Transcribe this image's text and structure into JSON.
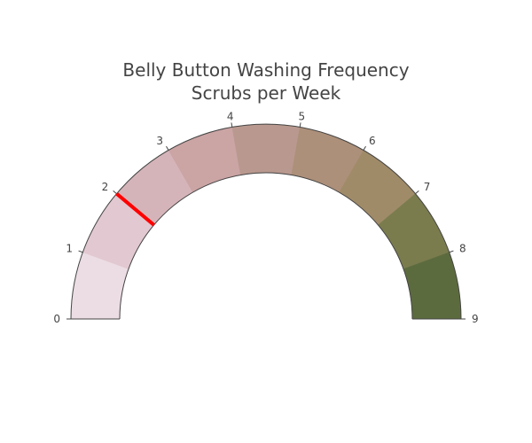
{
  "chart_data": {
    "type": "gauge",
    "title": "Belly Button Washing Frequency",
    "subtitle": "Scrubs per Week",
    "range": [
      0,
      9
    ],
    "value": 2,
    "tick_labels": [
      "0",
      "1",
      "2",
      "3",
      "4",
      "5",
      "6",
      "7",
      "8",
      "9"
    ],
    "steps": [
      {
        "range": [
          0,
          1
        ],
        "color": "#ecdde4"
      },
      {
        "range": [
          1,
          2
        ],
        "color": "#e2c8d0"
      },
      {
        "range": [
          2,
          3
        ],
        "color": "#d5b4b9"
      },
      {
        "range": [
          3,
          4
        ],
        "color": "#cba4a4"
      },
      {
        "range": [
          4,
          5
        ],
        "color": "#b9998f"
      },
      {
        "range": [
          5,
          6
        ],
        "color": "#ad907a"
      },
      {
        "range": [
          6,
          7
        ],
        "color": "#a08b68"
      },
      {
        "range": [
          7,
          8
        ],
        "color": "#7a7c4e"
      },
      {
        "range": [
          8,
          9
        ],
        "color": "#5c6b3e"
      }
    ],
    "needle_color": "#ff0000"
  }
}
